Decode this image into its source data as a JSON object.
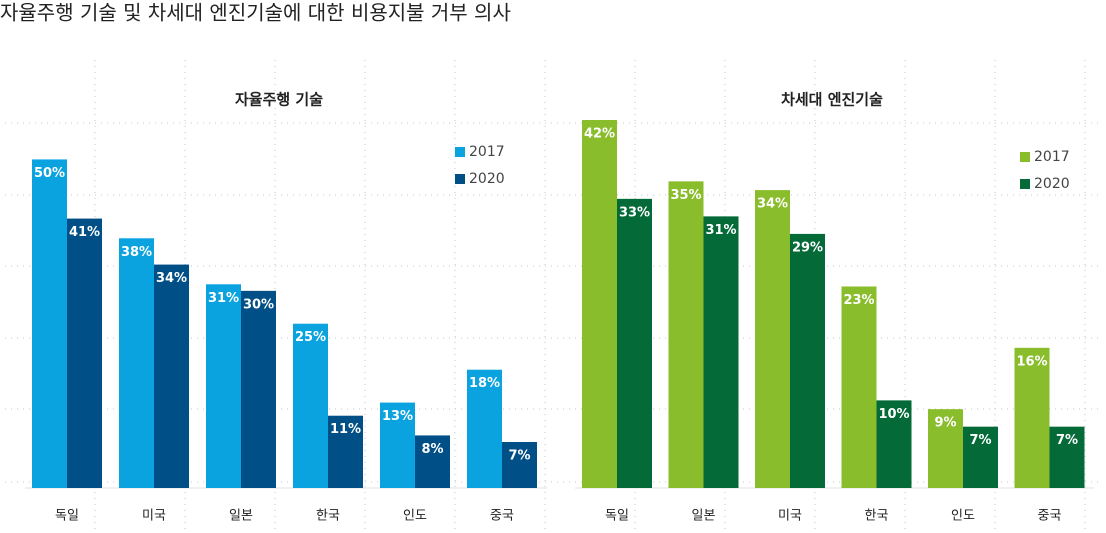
{
  "title": "자율주행 기술 및 차세대 엔진기술에 대한 비용지불 거부 의사",
  "chart_data": [
    {
      "type": "bar",
      "title": "자율주행 기술",
      "categories": [
        "독일",
        "미국",
        "일본",
        "한국",
        "인도",
        "중국"
      ],
      "series": [
        {
          "name": "2017",
          "color": "#0aa3df",
          "values": [
            50,
            38,
            31,
            25,
            13,
            18
          ],
          "value_labels": [
            "50%",
            "38%",
            "31%",
            "25%",
            "13%",
            "18%"
          ]
        },
        {
          "name": "2020",
          "color": "#004f86",
          "values": [
            41,
            34,
            30,
            11,
            8,
            7
          ],
          "value_labels": [
            "41%",
            "34%",
            "30%",
            "11%",
            "8%",
            "7%"
          ]
        }
      ],
      "ylim": [
        0,
        56
      ],
      "legend": "upper right"
    },
    {
      "type": "bar",
      "title": "차세대 엔진기술",
      "categories": [
        "독일",
        "일본",
        "미국",
        "한국",
        "인도",
        "중국"
      ],
      "series": [
        {
          "name": "2017",
          "color": "#8abd2c",
          "values": [
            42,
            35,
            34,
            23,
            9,
            16
          ],
          "value_labels": [
            "42%",
            "35%",
            "34%",
            "23%",
            "9%",
            "16%"
          ]
        },
        {
          "name": "2020",
          "color": "#046a38",
          "values": [
            33,
            31,
            29,
            10,
            7,
            7
          ],
          "value_labels": [
            "33%",
            "31%",
            "29%",
            "10%",
            "7%",
            "7%"
          ]
        }
      ],
      "ylim": [
        0,
        42
      ],
      "legend": "upper right"
    }
  ]
}
